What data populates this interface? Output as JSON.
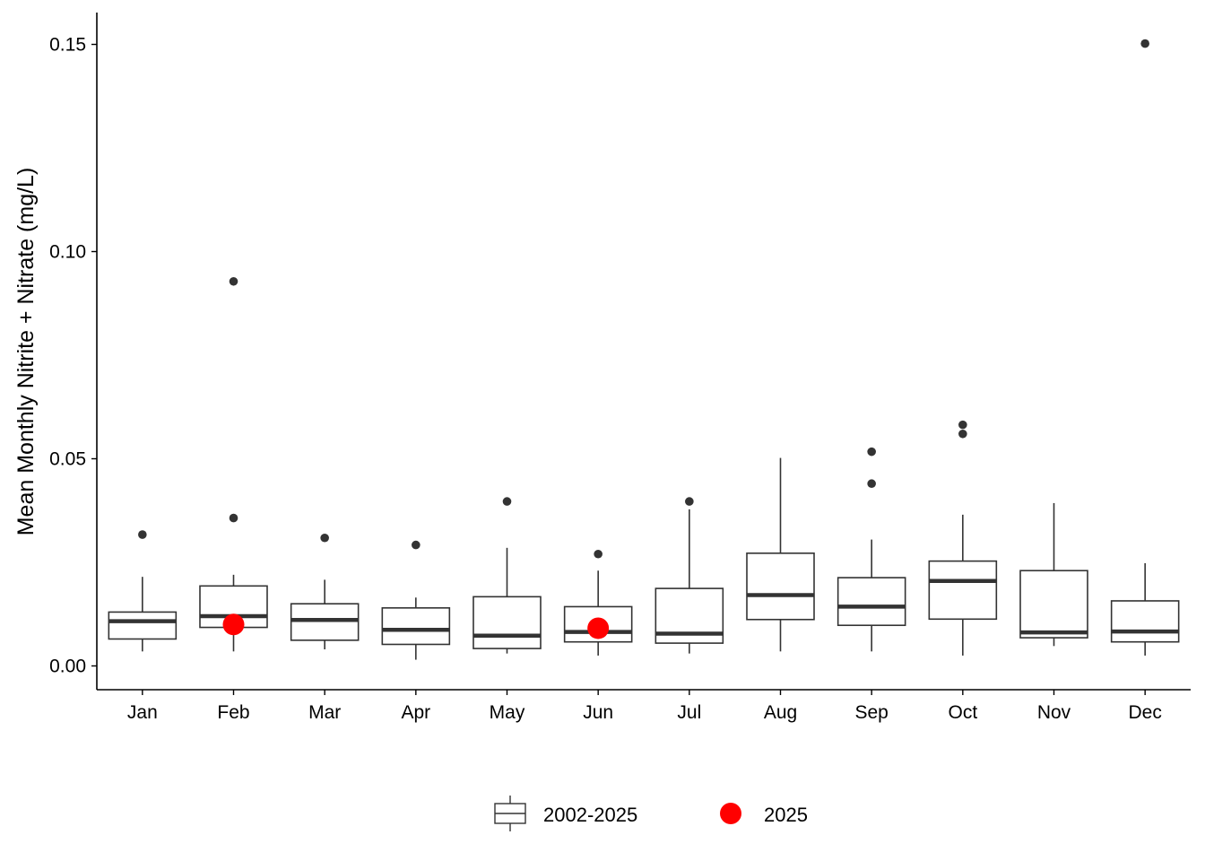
{
  "chart_data": {
    "type": "box",
    "title": "",
    "xlabel": "",
    "ylabel": "Mean Monthly Nitrite + Nitrate (mg/L)",
    "ylim": [
      -0.0055,
      0.158
    ],
    "yticks": [
      0.0,
      0.05,
      0.1,
      0.15
    ],
    "ytick_labels": [
      "0.00",
      "0.05",
      "0.10",
      "0.15"
    ],
    "categories": [
      "Jan",
      "Feb",
      "Mar",
      "Apr",
      "May",
      "Jun",
      "Jul",
      "Aug",
      "Sep",
      "Oct",
      "Nov",
      "Dec"
    ],
    "grid": false,
    "legend": {
      "placement": "bottom",
      "entries": [
        {
          "label": "2002-2025",
          "symbol": "box"
        },
        {
          "label": "2025",
          "symbol": "point"
        }
      ]
    },
    "colors": {
      "box_stroke": "#333333",
      "median": "#333333",
      "outlier": "#333333",
      "highlight_point": "#ff0000",
      "axis": "#000000"
    },
    "box_series": {
      "name": "2002-2025",
      "boxes": [
        {
          "month": "Jan",
          "min": 0.0035,
          "q1": 0.0065,
          "median": 0.0108,
          "q3": 0.013,
          "max": 0.0215,
          "outliers": [
            0.0317
          ]
        },
        {
          "month": "Feb",
          "min": 0.0035,
          "q1": 0.0093,
          "median": 0.012,
          "q3": 0.0193,
          "max": 0.022,
          "outliers": [
            0.0357,
            0.0928
          ]
        },
        {
          "month": "Mar",
          "min": 0.004,
          "q1": 0.0062,
          "median": 0.0111,
          "q3": 0.015,
          "max": 0.0208,
          "outliers": [
            0.0309
          ]
        },
        {
          "month": "Apr",
          "min": 0.0015,
          "q1": 0.0052,
          "median": 0.0087,
          "q3": 0.014,
          "max": 0.0165,
          "outliers": [
            0.0292
          ]
        },
        {
          "month": "May",
          "min": 0.003,
          "q1": 0.0042,
          "median": 0.0073,
          "q3": 0.0167,
          "max": 0.0285,
          "outliers": [
            0.0397
          ]
        },
        {
          "month": "Jun",
          "min": 0.0025,
          "q1": 0.0058,
          "median": 0.0082,
          "q3": 0.0143,
          "max": 0.023,
          "outliers": [
            0.027
          ]
        },
        {
          "month": "Jul",
          "min": 0.003,
          "q1": 0.0055,
          "median": 0.0078,
          "q3": 0.0187,
          "max": 0.0378,
          "outliers": [
            0.0397
          ]
        },
        {
          "month": "Aug",
          "min": 0.0035,
          "q1": 0.0112,
          "median": 0.0171,
          "q3": 0.0272,
          "max": 0.0502,
          "outliers": []
        },
        {
          "month": "Sep",
          "min": 0.0035,
          "q1": 0.0098,
          "median": 0.0143,
          "q3": 0.0213,
          "max": 0.0305,
          "outliers": [
            0.044,
            0.0517
          ]
        },
        {
          "month": "Oct",
          "min": 0.0025,
          "q1": 0.0113,
          "median": 0.0205,
          "q3": 0.0253,
          "max": 0.0365,
          "outliers": [
            0.056,
            0.0582
          ]
        },
        {
          "month": "Nov",
          "min": 0.0048,
          "q1": 0.0068,
          "median": 0.0081,
          "q3": 0.023,
          "max": 0.0393,
          "outliers": []
        },
        {
          "month": "Dec",
          "min": 0.0025,
          "q1": 0.0058,
          "median": 0.0083,
          "q3": 0.0157,
          "max": 0.0248,
          "outliers": [
            0.1502
          ]
        }
      ]
    },
    "point_series": {
      "name": "2025",
      "points": [
        {
          "month": "Feb",
          "value": 0.01
        },
        {
          "month": "Jun",
          "value": 0.0091
        }
      ]
    }
  }
}
